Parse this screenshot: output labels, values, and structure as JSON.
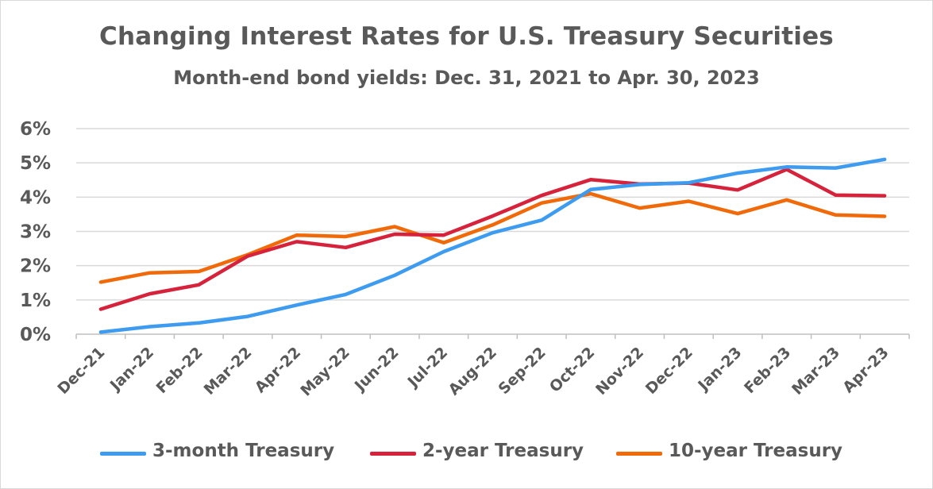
{
  "chart_data": {
    "type": "line",
    "title": "Changing Interest Rates for U.S. Treasury Securities",
    "subtitle": "Month-end bond yields: Dec. 31, 2021 to Apr. 30, 2023",
    "xlabel": "",
    "ylabel": "",
    "ylim": [
      0,
      6
    ],
    "yticks": [
      "0%",
      "1%",
      "2%",
      "3%",
      "4%",
      "5%",
      "6%"
    ],
    "categories": [
      "Dec-21",
      "Jan-22",
      "Feb-22",
      "Mar-22",
      "Apr-22",
      "May-22",
      "Jun-22",
      "Jul-22",
      "Aug-22",
      "Sep-22",
      "Oct-22",
      "Nov-22",
      "Dec-22",
      "Jan-23",
      "Feb-23",
      "Mar-23",
      "Apr-23"
    ],
    "grid": "horizontal",
    "legend": "bottom",
    "series": [
      {
        "name": "3-month Treasury",
        "color": "#3d9bf0",
        "values": [
          0.06,
          0.22,
          0.33,
          0.52,
          0.85,
          1.16,
          1.72,
          2.41,
          2.96,
          3.33,
          4.22,
          4.37,
          4.42,
          4.7,
          4.88,
          4.85,
          5.1
        ]
      },
      {
        "name": "2-year Treasury",
        "color": "#d6223a",
        "values": [
          0.73,
          1.18,
          1.44,
          2.28,
          2.7,
          2.53,
          2.92,
          2.89,
          3.45,
          4.05,
          4.51,
          4.38,
          4.41,
          4.21,
          4.81,
          4.06,
          4.04
        ]
      },
      {
        "name": "10-year Treasury",
        "color": "#f06a0a",
        "values": [
          1.52,
          1.79,
          1.83,
          2.32,
          2.89,
          2.85,
          3.14,
          2.67,
          3.19,
          3.83,
          4.1,
          3.68,
          3.88,
          3.52,
          3.92,
          3.48,
          3.44
        ]
      }
    ]
  }
}
